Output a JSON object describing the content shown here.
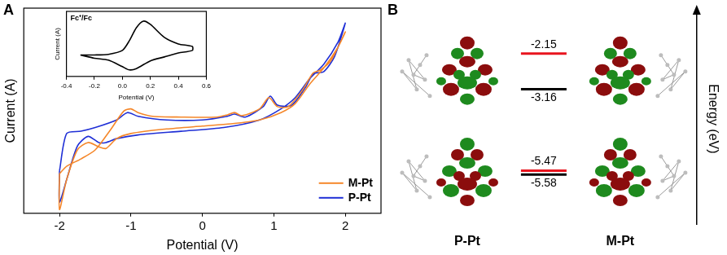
{
  "chart_data": [
    {
      "panel": "A",
      "type": "line",
      "x_label": "Potential (V)",
      "y_label": "Current (A)",
      "xlim": [
        -2.5,
        2.5
      ],
      "xticks": [
        -2,
        -1,
        0,
        1,
        2
      ],
      "ylim": [
        0,
        100
      ],
      "yticks": [],
      "tick_labels": "x",
      "grid": false,
      "legend": "lower right",
      "series": [
        {
          "name": "M-Pt",
          "color": "#f5872a",
          "x": [
            -2.0,
            -1.9,
            -1.7,
            -1.5,
            -1.3,
            -1.1,
            -1.0,
            -0.9,
            -0.7,
            -0.3,
            0.2,
            0.35,
            0.45,
            0.55,
            0.8,
            0.93,
            1.05,
            1.2,
            1.4,
            1.55,
            1.65,
            1.8,
            2.0,
            1.9,
            1.7,
            1.5,
            1.3,
            1.1,
            0.8,
            0.4,
            0.0,
            -0.5,
            -1.0,
            -1.2,
            -1.35,
            -1.45,
            -1.6,
            -1.75,
            -1.9,
            -2.0,
            -2.0
          ],
          "values": [
            19.3,
            22.9,
            26.5,
            30.9,
            40.0,
            49.8,
            50.9,
            49.1,
            47.3,
            46.9,
            46.9,
            48.0,
            49.1,
            47.6,
            50.9,
            56.4,
            52.0,
            52.0,
            60.0,
            68.4,
            69.8,
            74.5,
            88.4,
            81.1,
            70.9,
            62.9,
            53.5,
            49.1,
            45.5,
            43.6,
            42.5,
            41.1,
            38.9,
            36.4,
            31.6,
            32.4,
            34.5,
            30.9,
            16.4,
            1.8,
            19.3
          ]
        },
        {
          "name": "P-Pt",
          "color": "#1f2fd6",
          "x": [
            -2.0,
            -1.9,
            -1.7,
            -1.5,
            -1.2,
            -1.05,
            -0.9,
            -0.5,
            0.0,
            0.35,
            0.45,
            0.6,
            0.85,
            0.95,
            1.05,
            1.25,
            1.45,
            1.55,
            1.7,
            1.85,
            2.0,
            1.9,
            1.7,
            1.5,
            1.3,
            1.1,
            0.8,
            0.3,
            -0.3,
            -0.9,
            -1.2,
            -1.35,
            -1.45,
            -1.6,
            -1.75,
            -1.9,
            -2.0,
            -2.0
          ],
          "values": [
            20.7,
            38.9,
            40.0,
            41.8,
            45.5,
            49.1,
            47.3,
            45.5,
            45.5,
            47.3,
            48.4,
            46.9,
            52.0,
            57.1,
            52.7,
            52.7,
            61.8,
            68.0,
            69.1,
            76.4,
            92.7,
            83.6,
            72.7,
            65.5,
            56.4,
            50.9,
            45.5,
            41.8,
            40.0,
            38.2,
            36.4,
            34.5,
            34.5,
            37.5,
            32.7,
            16.4,
            5.5,
            20.7
          ]
        }
      ]
    },
    {
      "type": "line",
      "title": "Fc⁺/Fc",
      "x_label": "Potential (V)",
      "y_label": "Current (A)",
      "xlim": [
        -0.4,
        0.6
      ],
      "xticks": [
        -0.4,
        -0.2,
        {
          "value": 0,
          "label": "0.0"
        },
        0.2,
        0.4,
        0.6
      ],
      "ylim": [
        0,
        100
      ],
      "yticks": [],
      "tick_labels": "x",
      "grid": false,
      "series": [
        {
          "color": "#000000",
          "x": [
            -0.3,
            -0.2,
            -0.1,
            0,
            0.05,
            0.1,
            0.15,
            0.2,
            0.3,
            0.4,
            0.5,
            0.5,
            0.4,
            0.3,
            0.2,
            0.1,
            0.05,
            0,
            -0.1,
            -0.2,
            -0.3
          ],
          "values": [
            33,
            33,
            34,
            40,
            55,
            75,
            85,
            80,
            60,
            50,
            46,
            40,
            36,
            30,
            24,
            12,
            10,
            15,
            25,
            28,
            33
          ]
        }
      ]
    },
    {
      "panel": "B",
      "type": "level",
      "y_label": "Energy (eV)",
      "categories": [
        "P-Pt",
        "M-Pt"
      ],
      "ylim": [
        -7,
        -1
      ],
      "yticks": [],
      "tick_labels": "x",
      "data_labels": true,
      "series": [
        {
          "color": "#e8141e",
          "values": [
            -2.15,
            -5.47
          ]
        },
        {
          "color": "#000000",
          "values": [
            -3.16,
            -5.58
          ]
        }
      ]
    }
  ]
}
